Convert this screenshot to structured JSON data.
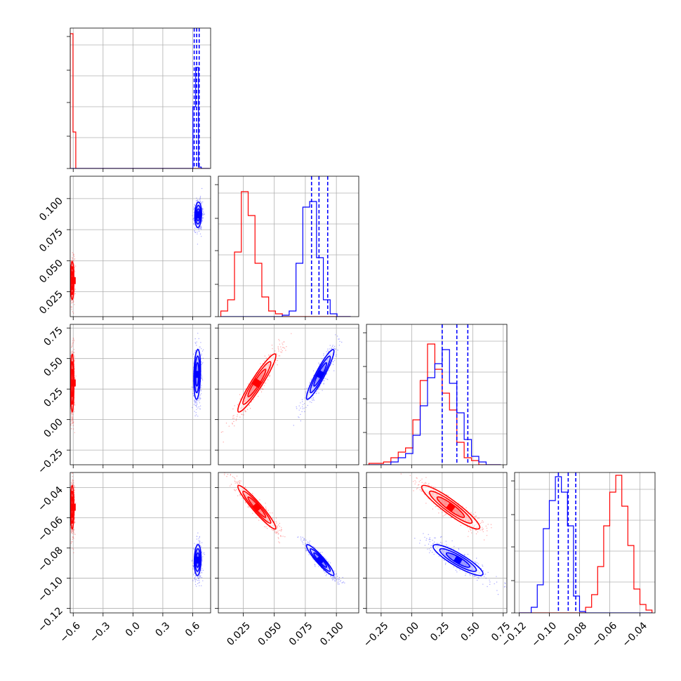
{
  "chart_data": {
    "type": "corner",
    "parameters": 4,
    "grid": true,
    "series": [
      {
        "color": "#ff0000"
      },
      {
        "color": "#0000ff"
      }
    ],
    "axes": [
      {
        "range": [
          -0.63,
          0.78
        ],
        "ticks": [
          -0.6,
          -0.3,
          0.0,
          0.3,
          0.6
        ],
        "tick_labels": [
          "−0.6",
          "−0.3",
          "0.0",
          "0.3",
          "0.6"
        ]
      },
      {
        "range": [
          0.005,
          0.118
        ],
        "ticks": [
          0.025,
          0.05,
          0.075,
          0.1
        ],
        "tick_labels": [
          "0.025",
          "0.050",
          "0.075",
          "0.100"
        ]
      },
      {
        "range": [
          -0.37,
          0.78
        ],
        "ticks": [
          -0.25,
          0.0,
          0.25,
          0.5,
          0.75
        ],
        "tick_labels": [
          "−0.25",
          "0.00",
          "0.25",
          "0.50",
          "0.75"
        ]
      },
      {
        "range": [
          -0.123,
          -0.03
        ],
        "ticks": [
          -0.12,
          -0.1,
          -0.08,
          -0.06,
          -0.04
        ],
        "tick_labels": [
          "−0.12",
          "−0.10",
          "−0.08",
          "−0.06",
          "−0.04"
        ]
      }
    ],
    "histograms": [
      {
        "param": 0,
        "edges": [
          -0.63,
          -0.602,
          -0.574,
          -0.546,
          -0.518,
          -0.49,
          -0.462,
          -0.434,
          -0.406,
          -0.378,
          -0.35,
          -0.322,
          -0.294,
          -0.266,
          -0.238,
          -0.21,
          -0.182,
          -0.154,
          -0.126,
          -0.098,
          -0.07,
          -0.042,
          -0.014,
          0.014,
          0.042,
          0.07,
          0.098,
          0.126,
          0.154,
          0.182,
          0.21,
          0.238,
          0.266,
          0.294,
          0.322,
          0.35,
          0.378,
          0.406,
          0.434,
          0.462,
          0.49,
          0.518,
          0.546,
          0.574,
          0.602,
          0.63,
          0.658,
          0.686,
          0.714,
          0.742,
          0.77
        ],
        "red": [
          0.96,
          0.26,
          0,
          0,
          0,
          0,
          0,
          0,
          0,
          0,
          0,
          0,
          0,
          0,
          0,
          0,
          0,
          0,
          0,
          0,
          0,
          0,
          0,
          0,
          0,
          0,
          0,
          0,
          0,
          0,
          0,
          0,
          0,
          0,
          0,
          0,
          0,
          0,
          0,
          0,
          0,
          0,
          0,
          0,
          0,
          0,
          0,
          0,
          0,
          0
        ],
        "blue": [
          0,
          0,
          0,
          0,
          0,
          0,
          0,
          0,
          0,
          0,
          0,
          0,
          0,
          0,
          0,
          0,
          0,
          0,
          0,
          0,
          0,
          0,
          0,
          0,
          0,
          0,
          0,
          0,
          0,
          0,
          0,
          0,
          0,
          0,
          0,
          0,
          0,
          0,
          0,
          0,
          0,
          0,
          0,
          0.0,
          0.44,
          0.72,
          0.01,
          0,
          0,
          0
        ],
        "quantiles_blue": [
          0.615,
          0.64,
          0.665
        ]
      },
      {
        "param": 1,
        "edges": [
          0.007,
          0.0125,
          0.018,
          0.0235,
          0.029,
          0.0345,
          0.04,
          0.0455,
          0.051,
          0.0565,
          0.062,
          0.0675,
          0.073,
          0.0785,
          0.084,
          0.0895,
          0.095,
          0.1005,
          0.106,
          0.1115
        ],
        "red": [
          0.04,
          0.12,
          0.46,
          0.89,
          0.72,
          0.38,
          0.14,
          0.04,
          0.02,
          0.0,
          0,
          0,
          0,
          0,
          0,
          0,
          0,
          0,
          0
        ],
        "blue": [
          0,
          0,
          0,
          0,
          0,
          0,
          0,
          0,
          0,
          0.01,
          0.04,
          0.38,
          0.78,
          0.82,
          0.42,
          0.12,
          0.02,
          0,
          0
        ],
        "quantiles_blue": [
          0.08,
          0.086,
          0.093
        ]
      },
      {
        "param": 2,
        "edges": [
          -0.35,
          -0.29,
          -0.23,
          -0.17,
          -0.11,
          -0.05,
          0.01,
          0.07,
          0.13,
          0.19,
          0.25,
          0.31,
          0.37,
          0.43,
          0.49,
          0.55,
          0.61,
          0.67,
          0.73
        ],
        "red": [
          0.01,
          0.01,
          0.02,
          0.05,
          0.09,
          0.12,
          0.32,
          0.6,
          0.86,
          0.68,
          0.51,
          0.39,
          0.16,
          0.05,
          0.03,
          0.0,
          0,
          0
        ],
        "blue": [
          0,
          0,
          0,
          0.02,
          0.05,
          0.08,
          0.21,
          0.42,
          0.62,
          0.72,
          0.82,
          0.58,
          0.37,
          0.18,
          0.06,
          0.02,
          0,
          0
        ],
        "quantiles_blue": [
          0.25,
          0.37,
          0.46
        ]
      },
      {
        "param": 3,
        "edges": [
          -0.12,
          -0.116,
          -0.112,
          -0.108,
          -0.104,
          -0.1,
          -0.096,
          -0.092,
          -0.088,
          -0.084,
          -0.08,
          -0.076,
          -0.072,
          -0.068,
          -0.064,
          -0.06,
          -0.056,
          -0.052,
          -0.048,
          -0.044,
          -0.04,
          -0.036,
          -0.032
        ],
        "red": [
          0,
          0,
          0,
          0,
          0,
          0,
          0,
          0,
          0,
          0,
          0,
          0.04,
          0.13,
          0.33,
          0.62,
          0.86,
          0.98,
          0.76,
          0.48,
          0.17,
          0.06,
          0.02
        ],
        "blue": [
          0,
          0,
          0.04,
          0.2,
          0.6,
          0.8,
          0.97,
          0.86,
          0.62,
          0.12,
          0.01,
          0,
          0,
          0,
          0,
          0,
          0,
          0,
          0,
          0,
          0,
          0
        ],
        "quantiles_blue": [
          -0.094,
          -0.0875,
          -0.0825
        ]
      }
    ],
    "scatter_panels": [
      {
        "row": 1,
        "col": 0,
        "red": {
          "mean": [
            -0.61,
            0.034
          ],
          "sd": [
            0.01,
            0.009
          ],
          "rho": 0.0
        },
        "blue": {
          "mean": [
            0.655,
            0.087
          ],
          "sd": [
            0.02,
            0.006
          ],
          "rho": 0.1
        }
      },
      {
        "row": 2,
        "col": 0,
        "red": {
          "mean": [
            -0.61,
            0.3
          ],
          "sd": [
            0.01,
            0.14
          ],
          "rho": 0.0
        },
        "blue": {
          "mean": [
            0.645,
            0.37
          ],
          "sd": [
            0.02,
            0.12
          ],
          "rho": 0.2
        }
      },
      {
        "row": 2,
        "col": 1,
        "red": {
          "mean": [
            0.036,
            0.3
          ],
          "sd": [
            0.009,
            0.14
          ],
          "rho": 0.94
        },
        "blue": {
          "mean": [
            0.087,
            0.37
          ],
          "sd": [
            0.0065,
            0.12
          ],
          "rho": 0.93
        }
      },
      {
        "row": 3,
        "col": 0,
        "red": {
          "mean": [
            -0.61,
            -0.053
          ],
          "sd": [
            0.01,
            0.0085
          ],
          "rho": 0.0
        },
        "blue": {
          "mean": [
            0.65,
            -0.088
          ],
          "sd": [
            0.02,
            0.006
          ],
          "rho": 0.1
        }
      },
      {
        "row": 3,
        "col": 1,
        "red": {
          "mean": [
            0.036,
            -0.053
          ],
          "sd": [
            0.009,
            0.0085
          ],
          "rho": -0.95
        },
        "blue": {
          "mean": [
            0.087,
            -0.088
          ],
          "sd": [
            0.0065,
            0.006
          ],
          "rho": -0.93
        }
      },
      {
        "row": 3,
        "col": 2,
        "red": {
          "mean": [
            0.32,
            -0.053
          ],
          "sd": [
            0.14,
            0.0085
          ],
          "rho": -0.92
        },
        "blue": {
          "mean": [
            0.38,
            -0.088
          ],
          "sd": [
            0.12,
            0.006
          ],
          "rho": -0.88
        }
      }
    ]
  }
}
